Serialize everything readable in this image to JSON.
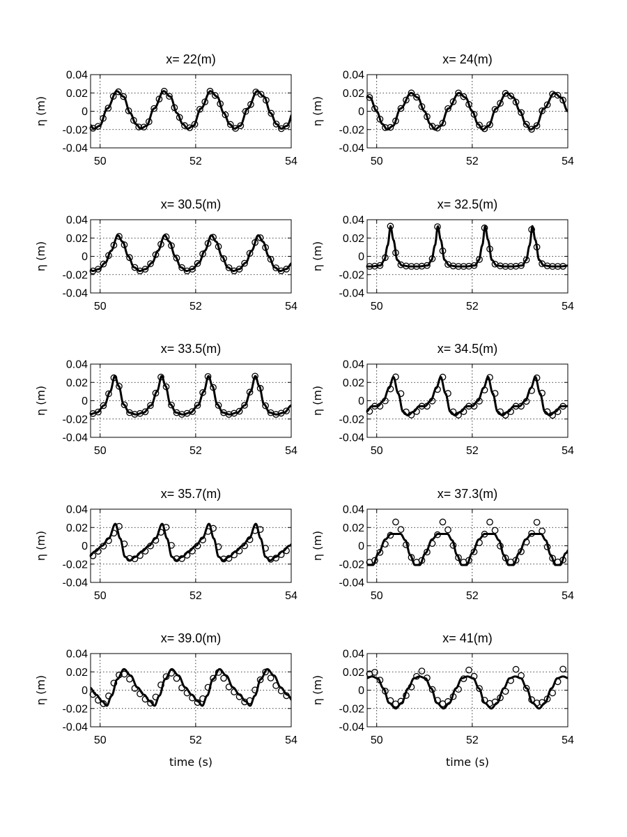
{
  "chart_data": [
    {
      "type": "line",
      "title": "x= 22(m)",
      "xlabel": "",
      "ylabel": "η (m)",
      "xlim": [
        49.8,
        54
      ],
      "ylim": [
        -0.04,
        0.04
      ],
      "xticks": [
        50,
        52,
        54
      ],
      "xtick_labels": [
        "50",
        "52",
        "54"
      ],
      "yticks": [
        -0.04,
        -0.02,
        0,
        0.02,
        0.04
      ],
      "ytick_labels": [
        "-0.04",
        "-0.02",
        "0",
        "0.02",
        "0.04"
      ],
      "grid": true,
      "period": 0.98,
      "series": [
        {
          "style": "line",
          "x": [
            0,
            0.14,
            0.28,
            0.4,
            0.5,
            0.62,
            0.78,
            0.98
          ],
          "y": [
            0.022,
            0.016,
            -0.002,
            -0.014,
            -0.019,
            -0.016,
            0.003,
            0.022
          ],
          "range": [
            49.8,
            54
          ],
          "phase": 50.35
        },
        {
          "style": "circle",
          "x": [
            0,
            0.14,
            0.28,
            0.4,
            0.5,
            0.62,
            0.78,
            0.98
          ],
          "y": [
            0.022,
            0.016,
            -0.002,
            -0.014,
            -0.019,
            -0.016,
            0.003,
            0.022
          ],
          "range": [
            49.85,
            53.9
          ],
          "phase": 50.35,
          "count": 39
        }
      ]
    },
    {
      "type": "line",
      "title": "x= 24(m)",
      "xlabel": "",
      "ylabel": "η (m)",
      "xlim": [
        49.8,
        54
      ],
      "ylim": [
        -0.04,
        0.04
      ],
      "xticks": [
        50,
        52,
        54
      ],
      "xtick_labels": [
        "50",
        "52",
        "54"
      ],
      "yticks": [
        -0.04,
        -0.02,
        0,
        0.02,
        0.04
      ],
      "ytick_labels": [
        "-0.04",
        "-0.02",
        "0",
        "0.02",
        "0.04"
      ],
      "grid": true,
      "period": 1.0,
      "series": [
        {
          "style": "line",
          "x": [
            0,
            0.14,
            0.28,
            0.4,
            0.5,
            0.62,
            0.78,
            1.0
          ],
          "y": [
            0.02,
            0.015,
            0.0,
            -0.014,
            -0.02,
            -0.016,
            0.003,
            0.02
          ],
          "range": [
            49.8,
            54
          ],
          "phase": 50.72
        },
        {
          "style": "circle",
          "x": [
            0,
            0.14,
            0.28,
            0.4,
            0.5,
            0.62,
            0.78,
            1.0
          ],
          "y": [
            0.02,
            0.015,
            0.0,
            -0.014,
            -0.02,
            -0.016,
            0.003,
            0.02
          ],
          "range": [
            49.85,
            53.9
          ],
          "phase": 50.72,
          "count": 38
        }
      ]
    },
    {
      "type": "line",
      "title": "x= 30.5(m)",
      "xlabel": "",
      "ylabel": "η (m)",
      "xlim": [
        49.8,
        54
      ],
      "ylim": [
        -0.04,
        0.04
      ],
      "xticks": [
        50,
        52,
        54
      ],
      "xtick_labels": [
        "50",
        "52",
        "54"
      ],
      "yticks": [
        -0.04,
        -0.02,
        0,
        0.02,
        0.04
      ],
      "ytick_labels": [
        "-0.04",
        "-0.02",
        "0",
        "0.02",
        "0.04"
      ],
      "grid": true,
      "period": 0.98,
      "series": [
        {
          "style": "line",
          "x": [
            0,
            0.1,
            0.22,
            0.34,
            0.46,
            0.58,
            0.72,
            0.84,
            0.98
          ],
          "y": [
            0.023,
            0.016,
            0.0,
            -0.012,
            -0.016,
            -0.014,
            -0.007,
            0.006,
            0.023
          ],
          "range": [
            49.8,
            54
          ],
          "phase": 50.37
        },
        {
          "style": "circle",
          "x": [
            0,
            0.1,
            0.22,
            0.34,
            0.46,
            0.58,
            0.72,
            0.84,
            0.98
          ],
          "y": [
            0.023,
            0.016,
            0.0,
            -0.012,
            -0.016,
            -0.014,
            -0.007,
            0.006,
            0.023
          ],
          "range": [
            49.85,
            53.9
          ],
          "phase": 50.37,
          "count": 38
        }
      ]
    },
    {
      "type": "line",
      "title": "x= 32.5(m)",
      "xlabel": "",
      "ylabel": "η (m)",
      "xlim": [
        49.8,
        54
      ],
      "ylim": [
        -0.04,
        0.04
      ],
      "xticks": [
        50,
        52,
        54
      ],
      "xtick_labels": [
        "50",
        "52",
        "54"
      ],
      "yticks": [
        -0.04,
        -0.02,
        0,
        0.02,
        0.04
      ],
      "ytick_labels": [
        "-0.04",
        "-0.02",
        "0",
        "0.02",
        "0.04"
      ],
      "grid": true,
      "period": 0.99,
      "series": [
        {
          "style": "line",
          "x": [
            0,
            0.06,
            0.14,
            0.24,
            0.4,
            0.6,
            0.78,
            0.86,
            0.93,
            0.99
          ],
          "y": [
            0.033,
            0.018,
            -0.004,
            -0.01,
            -0.011,
            -0.011,
            -0.01,
            -0.004,
            0.012,
            0.033
          ],
          "range": [
            49.8,
            54
          ],
          "phase": 50.29
        },
        {
          "style": "circle",
          "x": [
            0,
            0.06,
            0.14,
            0.24,
            0.4,
            0.6,
            0.78,
            0.86,
            0.93,
            0.99
          ],
          "y": [
            0.033,
            0.018,
            -0.004,
            -0.01,
            -0.011,
            -0.011,
            -0.01,
            -0.004,
            0.012,
            0.033
          ],
          "range": [
            49.85,
            53.9
          ],
          "phase": 50.29,
          "count": 38
        }
      ]
    },
    {
      "type": "line",
      "title": "x= 33.5(m)",
      "xlabel": "",
      "ylabel": "η (m)",
      "xlim": [
        49.8,
        54
      ],
      "ylim": [
        -0.04,
        0.04
      ],
      "xticks": [
        50,
        52,
        54
      ],
      "xtick_labels": [
        "50",
        "52",
        "54"
      ],
      "yticks": [
        -0.04,
        -0.02,
        0,
        0.02,
        0.04
      ],
      "ytick_labels": [
        "-0.04",
        "-0.02",
        "0",
        "0.02",
        "0.04"
      ],
      "grid": true,
      "period": 0.98,
      "series": [
        {
          "style": "line",
          "x": [
            0,
            0.08,
            0.18,
            0.3,
            0.44,
            0.6,
            0.76,
            0.88,
            0.98
          ],
          "y": [
            0.027,
            0.016,
            -0.004,
            -0.013,
            -0.015,
            -0.013,
            -0.005,
            0.01,
            0.027
          ],
          "range": [
            49.8,
            54
          ],
          "phase": 50.31
        },
        {
          "style": "circle",
          "x": [
            0,
            0.08,
            0.18,
            0.3,
            0.44,
            0.6,
            0.76,
            0.88,
            0.98
          ],
          "y": [
            0.027,
            0.016,
            -0.004,
            -0.013,
            -0.015,
            -0.013,
            -0.005,
            0.01,
            0.027
          ],
          "range": [
            49.85,
            53.9
          ],
          "phase": 50.31,
          "count": 38
        }
      ]
    },
    {
      "type": "line",
      "title": "x= 34.5(m)",
      "xlabel": "",
      "ylabel": "η (m)",
      "xlim": [
        49.8,
        54
      ],
      "ylim": [
        -0.04,
        0.04
      ],
      "xticks": [
        50,
        52,
        54
      ],
      "xtick_labels": [
        "50",
        "52",
        "54"
      ],
      "yticks": [
        -0.04,
        -0.02,
        0,
        0.02,
        0.04
      ],
      "ytick_labels": [
        "-0.04",
        "-0.02",
        "0",
        "0.02",
        "0.04"
      ],
      "grid": true,
      "period": 0.99,
      "series": [
        {
          "style": "line",
          "x": [
            0,
            0.1,
            0.2,
            0.3,
            0.42,
            0.54,
            0.66,
            0.78,
            0.9,
            0.99
          ],
          "y": [
            0.026,
            0.008,
            -0.012,
            -0.016,
            -0.012,
            -0.006,
            -0.006,
            0.0,
            0.014,
            0.026
          ],
          "range": [
            49.8,
            54
          ],
          "phase": 50.35
        },
        {
          "style": "circle",
          "x": [
            0,
            0.1,
            0.2,
            0.3,
            0.42,
            0.54,
            0.66,
            0.78,
            0.9,
            0.99
          ],
          "y": [
            0.026,
            0.008,
            -0.012,
            -0.016,
            -0.012,
            -0.006,
            -0.006,
            0.0,
            0.014,
            0.026
          ],
          "range": [
            49.85,
            53.9
          ],
          "phase": 50.4,
          "count": 38
        }
      ]
    },
    {
      "type": "line",
      "title": "x= 35.7(m)",
      "xlabel": "",
      "ylabel": "η (m)",
      "xlim": [
        49.8,
        54
      ],
      "ylim": [
        -0.04,
        0.04
      ],
      "xticks": [
        50,
        52,
        54
      ],
      "xtick_labels": [
        "50",
        "52",
        "54"
      ],
      "yticks": [
        -0.04,
        -0.02,
        0,
        0.02,
        0.04
      ],
      "ytick_labels": [
        "-0.04",
        "-0.02",
        "0",
        "0.02",
        "0.04"
      ],
      "grid": true,
      "period": 0.98,
      "series": [
        {
          "style": "line",
          "x": [
            0,
            0.1,
            0.2,
            0.3,
            0.42,
            0.56,
            0.7,
            0.84,
            0.98
          ],
          "y": [
            0.024,
            0.008,
            -0.012,
            -0.016,
            -0.012,
            -0.006,
            0.0,
            0.008,
            0.024
          ],
          "range": [
            49.8,
            54
          ],
          "phase": 50.32
        },
        {
          "style": "circle",
          "x": [
            0,
            0.1,
            0.2,
            0.3,
            0.42,
            0.56,
            0.7,
            0.84,
            0.98
          ],
          "y": [
            0.024,
            0.008,
            -0.012,
            -0.016,
            -0.012,
            -0.006,
            0.0,
            0.008,
            0.024
          ],
          "range": [
            49.85,
            53.9
          ],
          "phase": 50.37,
          "count": 38
        }
      ]
    },
    {
      "type": "line",
      "title": "x= 37.3(m)",
      "xlabel": "",
      "ylabel": "η (m)",
      "xlim": [
        49.8,
        54
      ],
      "ylim": [
        -0.04,
        0.04
      ],
      "xticks": [
        50,
        52,
        54
      ],
      "xtick_labels": [
        "50",
        "52",
        "54"
      ],
      "yticks": [
        -0.04,
        -0.02,
        0,
        0.02,
        0.04
      ],
      "ytick_labels": [
        "-0.04",
        "-0.02",
        "0",
        "0.02",
        "0.04"
      ],
      "grid": true,
      "period": 0.98,
      "series": [
        {
          "style": "line",
          "x": [
            0,
            0.1,
            0.2,
            0.3,
            0.4,
            0.5,
            0.62,
            0.76,
            0.88,
            0.98
          ],
          "y": [
            0.013,
            0.013,
            0.006,
            -0.01,
            -0.021,
            -0.021,
            -0.008,
            0.007,
            0.013,
            0.013
          ],
          "range": [
            49.8,
            54
          ],
          "phase": 50.4
        },
        {
          "style": "circle",
          "x": [
            0,
            0.1,
            0.2,
            0.3,
            0.42,
            0.54,
            0.68,
            0.84,
            0.98
          ],
          "y": [
            0.026,
            0.018,
            0.002,
            -0.012,
            -0.018,
            -0.016,
            -0.006,
            0.01,
            0.026
          ],
          "range": [
            49.85,
            53.9
          ],
          "phase": 50.4,
          "count": 38
        }
      ]
    },
    {
      "type": "line",
      "title": "x= 39.0(m)",
      "xlabel": "time (s)",
      "ylabel": "η (m)",
      "xlim": [
        49.8,
        54
      ],
      "ylim": [
        -0.04,
        0.04
      ],
      "xticks": [
        50,
        52,
        54
      ],
      "xtick_labels": [
        "50",
        "52",
        "54"
      ],
      "yticks": [
        -0.04,
        -0.02,
        0,
        0.02,
        0.04
      ],
      "ytick_labels": [
        "-0.04",
        "-0.02",
        "0",
        "0.02",
        "0.04"
      ],
      "grid": true,
      "period": 1.0,
      "series": [
        {
          "style": "line",
          "x": [
            0,
            0.14,
            0.28,
            0.42,
            0.54,
            0.64,
            0.74,
            0.86,
            1.0
          ],
          "y": [
            0.023,
            0.016,
            0.003,
            -0.005,
            -0.012,
            -0.017,
            -0.006,
            0.012,
            0.023
          ],
          "range": [
            49.8,
            54
          ],
          "phase": 50.5
        },
        {
          "style": "circle",
          "x": [
            0,
            0.14,
            0.28,
            0.42,
            0.54,
            0.64,
            0.74,
            0.86,
            1.0
          ],
          "y": [
            0.02,
            0.013,
            0.002,
            -0.005,
            -0.012,
            -0.015,
            -0.006,
            0.009,
            0.02
          ],
          "range": [
            49.85,
            53.9
          ],
          "phase": 50.45,
          "count": 38
        }
      ]
    },
    {
      "type": "line",
      "title": "x= 41(m)",
      "xlabel": "time (s)",
      "ylabel": "η (m)",
      "xlim": [
        49.8,
        54
      ],
      "ylim": [
        -0.04,
        0.04
      ],
      "xticks": [
        50,
        52,
        54
      ],
      "xtick_labels": [
        "50",
        "52",
        "54"
      ],
      "yticks": [
        -0.04,
        -0.02,
        0,
        0.02,
        0.04
      ],
      "ytick_labels": [
        "-0.04",
        "-0.02",
        "0",
        "0.02",
        "0.04"
      ],
      "grid": true,
      "period": 1.0,
      "series": [
        {
          "style": "line",
          "x": [
            0,
            0.12,
            0.24,
            0.36,
            0.5,
            0.62,
            0.76,
            0.88,
            1.0
          ],
          "y": [
            0.015,
            0.013,
            0.002,
            -0.014,
            -0.02,
            -0.014,
            0.002,
            0.013,
            0.015
          ],
          "range": [
            49.8,
            54
          ],
          "phase": 50.9
        },
        {
          "style": "circle",
          "x": [
            0,
            0.12,
            0.24,
            0.36,
            0.5,
            0.62,
            0.76,
            0.88,
            1.0
          ],
          "y": [
            0.023,
            0.016,
            0.002,
            -0.011,
            -0.015,
            -0.012,
            -0.004,
            0.009,
            0.023
          ],
          "range": [
            49.85,
            53.9
          ],
          "phase": 50.9,
          "count": 38
        }
      ]
    }
  ]
}
